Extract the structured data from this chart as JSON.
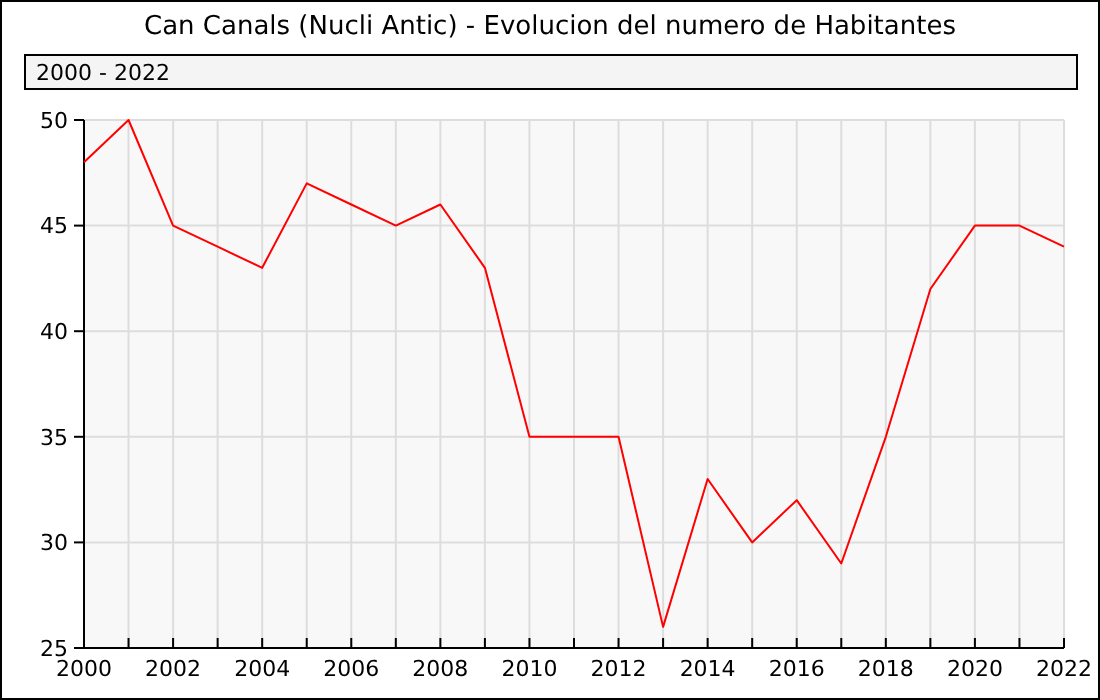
{
  "chart_data": {
    "type": "line",
    "title": "Can Canals (Nucli Antic) - Evolucion del numero de Habitantes",
    "subtitle": "2000 - 2022",
    "x": [
      2000,
      2001,
      2002,
      2003,
      2004,
      2005,
      2006,
      2007,
      2008,
      2009,
      2010,
      2011,
      2012,
      2013,
      2014,
      2015,
      2016,
      2017,
      2018,
      2019,
      2020,
      2021,
      2022
    ],
    "series": [
      {
        "color": "#ff0000",
        "values": [
          48,
          50,
          45,
          44,
          43,
          47,
          46,
          45,
          46,
          43,
          35,
          35,
          35,
          26,
          33,
          30,
          32,
          29,
          35,
          42,
          45,
          45,
          44
        ]
      }
    ],
    "xlim": [
      2000,
      2022
    ],
    "ylim": [
      25,
      50
    ],
    "xticks": [
      2000,
      {
        "value": 2001,
        "label": null
      },
      2002,
      {
        "value": 2003,
        "label": null
      },
      2004,
      {
        "value": 2005,
        "label": null
      },
      2006,
      {
        "value": 2007,
        "label": null
      },
      2008,
      {
        "value": 2009,
        "label": null
      },
      2010,
      {
        "value": 2011,
        "label": null
      },
      2012,
      {
        "value": 2013,
        "label": null
      },
      2014,
      {
        "value": 2015,
        "label": null
      },
      2016,
      {
        "value": 2017,
        "label": null
      },
      2018,
      {
        "value": 2019,
        "label": null
      },
      2020,
      {
        "value": 2021,
        "label": null
      },
      2022
    ],
    "yticks": [
      25,
      30,
      35,
      40,
      45,
      50
    ],
    "grid": true,
    "marker": "none",
    "line_style": "solid"
  }
}
